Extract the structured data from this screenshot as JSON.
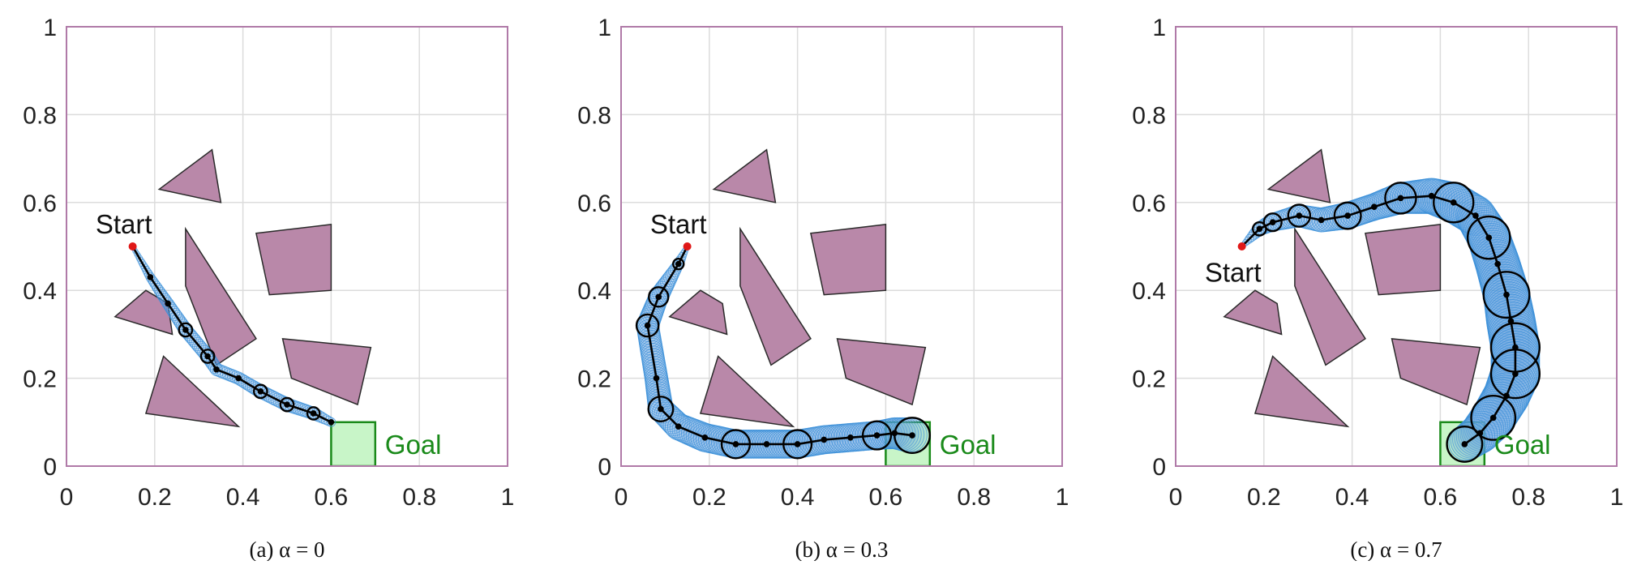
{
  "chart_data": [
    {
      "type": "line",
      "caption": "(a)  α = 0",
      "xlim": [
        0,
        1
      ],
      "ylim": [
        0,
        1
      ],
      "xticks": [
        "0",
        "0.2",
        "0.4",
        "0.6",
        "0.8",
        "1"
      ],
      "yticks": [
        "0",
        "0.2",
        "0.4",
        "0.6",
        "0.8",
        "1"
      ],
      "grid": true,
      "start_label": "Start",
      "goal_label": "Goal",
      "start": [
        0.15,
        0.5
      ],
      "start_label_pos": [
        0.13,
        0.55
      ],
      "goal_region": [
        [
          0.6,
          0
        ],
        [
          0.7,
          0.1
        ]
      ],
      "obstacles": [
        [
          [
            0.21,
            0.63
          ],
          [
            0.33,
            0.72
          ],
          [
            0.35,
            0.6
          ]
        ],
        [
          [
            0.27,
            0.54
          ],
          [
            0.43,
            0.29
          ],
          [
            0.34,
            0.23
          ],
          [
            0.27,
            0.41
          ]
        ],
        [
          [
            0.43,
            0.53
          ],
          [
            0.6,
            0.55
          ],
          [
            0.6,
            0.4
          ],
          [
            0.46,
            0.39
          ]
        ],
        [
          [
            0.18,
            0.4
          ],
          [
            0.23,
            0.37
          ],
          [
            0.24,
            0.3
          ],
          [
            0.11,
            0.34
          ]
        ],
        [
          [
            0.22,
            0.25
          ],
          [
            0.39,
            0.09
          ],
          [
            0.18,
            0.12
          ]
        ],
        [
          [
            0.49,
            0.29
          ],
          [
            0.69,
            0.27
          ],
          [
            0.66,
            0.14
          ],
          [
            0.51,
            0.2
          ]
        ]
      ],
      "path": [
        [
          0.15,
          0.5
        ],
        [
          0.19,
          0.43
        ],
        [
          0.23,
          0.37
        ],
        [
          0.27,
          0.31
        ],
        [
          0.32,
          0.25
        ],
        [
          0.34,
          0.22
        ],
        [
          0.39,
          0.2
        ],
        [
          0.44,
          0.17
        ],
        [
          0.5,
          0.14
        ],
        [
          0.56,
          0.12
        ],
        [
          0.6,
          0.1
        ]
      ],
      "tube_radius": [
        0.005,
        0.01,
        0.013,
        0.015,
        0.015,
        0.014,
        0.014,
        0.015,
        0.015,
        0.014,
        0.01
      ],
      "circle_indices": [
        3,
        4,
        7,
        8,
        9
      ]
    },
    {
      "type": "line",
      "caption": "(b)  α = 0.3",
      "xlim": [
        0,
        1
      ],
      "ylim": [
        0,
        1
      ],
      "xticks": [
        "0",
        "0.2",
        "0.4",
        "0.6",
        "0.8",
        "1"
      ],
      "yticks": [
        "0",
        "0.2",
        "0.4",
        "0.6",
        "0.8",
        "1"
      ],
      "grid": true,
      "start_label": "Start",
      "goal_label": "Goal",
      "start": [
        0.15,
        0.5
      ],
      "start_label_pos": [
        0.13,
        0.55
      ],
      "goal_region": [
        [
          0.6,
          0
        ],
        [
          0.7,
          0.1
        ]
      ],
      "obstacles": [
        [
          [
            0.21,
            0.63
          ],
          [
            0.33,
            0.72
          ],
          [
            0.35,
            0.6
          ]
        ],
        [
          [
            0.27,
            0.54
          ],
          [
            0.43,
            0.29
          ],
          [
            0.34,
            0.23
          ],
          [
            0.27,
            0.41
          ]
        ],
        [
          [
            0.43,
            0.53
          ],
          [
            0.6,
            0.55
          ],
          [
            0.6,
            0.4
          ],
          [
            0.46,
            0.39
          ]
        ],
        [
          [
            0.18,
            0.4
          ],
          [
            0.23,
            0.37
          ],
          [
            0.24,
            0.3
          ],
          [
            0.11,
            0.34
          ]
        ],
        [
          [
            0.22,
            0.25
          ],
          [
            0.39,
            0.09
          ],
          [
            0.18,
            0.12
          ]
        ],
        [
          [
            0.49,
            0.29
          ],
          [
            0.69,
            0.27
          ],
          [
            0.66,
            0.14
          ],
          [
            0.51,
            0.2
          ]
        ]
      ],
      "path": [
        [
          0.15,
          0.5
        ],
        [
          0.13,
          0.46
        ],
        [
          0.085,
          0.385
        ],
        [
          0.06,
          0.32
        ],
        [
          0.08,
          0.2
        ],
        [
          0.09,
          0.13
        ],
        [
          0.13,
          0.09
        ],
        [
          0.19,
          0.065
        ],
        [
          0.26,
          0.05
        ],
        [
          0.33,
          0.05
        ],
        [
          0.4,
          0.05
        ],
        [
          0.46,
          0.06
        ],
        [
          0.52,
          0.065
        ],
        [
          0.58,
          0.07
        ],
        [
          0.62,
          0.075
        ],
        [
          0.66,
          0.07
        ]
      ],
      "tube_radius": [
        0.005,
        0.012,
        0.022,
        0.025,
        0.026,
        0.028,
        0.03,
        0.032,
        0.032,
        0.032,
        0.032,
        0.032,
        0.032,
        0.032,
        0.035,
        0.04
      ],
      "circle_indices": [
        1,
        2,
        3,
        5,
        8,
        10,
        13,
        15
      ]
    },
    {
      "type": "line",
      "caption": "(c)  α = 0.7",
      "xlim": [
        0,
        1
      ],
      "ylim": [
        0,
        1
      ],
      "xticks": [
        "0",
        "0.2",
        "0.4",
        "0.6",
        "0.8",
        "1"
      ],
      "yticks": [
        "0",
        "0.2",
        "0.4",
        "0.6",
        "0.8",
        "1"
      ],
      "grid": true,
      "start_label": "Start",
      "goal_label": "Goal",
      "start": [
        0.15,
        0.5
      ],
      "start_label_pos": [
        0.13,
        0.44
      ],
      "goal_region": [
        [
          0.6,
          0
        ],
        [
          0.7,
          0.1
        ]
      ],
      "obstacles": [
        [
          [
            0.21,
            0.63
          ],
          [
            0.33,
            0.72
          ],
          [
            0.35,
            0.6
          ]
        ],
        [
          [
            0.27,
            0.54
          ],
          [
            0.43,
            0.29
          ],
          [
            0.34,
            0.23
          ],
          [
            0.27,
            0.41
          ]
        ],
        [
          [
            0.43,
            0.53
          ],
          [
            0.6,
            0.55
          ],
          [
            0.6,
            0.4
          ],
          [
            0.46,
            0.39
          ]
        ],
        [
          [
            0.18,
            0.4
          ],
          [
            0.23,
            0.37
          ],
          [
            0.24,
            0.3
          ],
          [
            0.11,
            0.34
          ]
        ],
        [
          [
            0.22,
            0.25
          ],
          [
            0.39,
            0.09
          ],
          [
            0.18,
            0.12
          ]
        ],
        [
          [
            0.49,
            0.29
          ],
          [
            0.69,
            0.27
          ],
          [
            0.66,
            0.14
          ],
          [
            0.51,
            0.2
          ]
        ]
      ],
      "path": [
        [
          0.15,
          0.5
        ],
        [
          0.19,
          0.54
        ],
        [
          0.22,
          0.555
        ],
        [
          0.28,
          0.57
        ],
        [
          0.33,
          0.56
        ],
        [
          0.39,
          0.57
        ],
        [
          0.45,
          0.59
        ],
        [
          0.51,
          0.61
        ],
        [
          0.58,
          0.615
        ],
        [
          0.63,
          0.6
        ],
        [
          0.68,
          0.57
        ],
        [
          0.71,
          0.52
        ],
        [
          0.73,
          0.46
        ],
        [
          0.75,
          0.39
        ],
        [
          0.76,
          0.33
        ],
        [
          0.77,
          0.27
        ],
        [
          0.77,
          0.21
        ],
        [
          0.75,
          0.16
        ],
        [
          0.72,
          0.11
        ],
        [
          0.69,
          0.075
        ],
        [
          0.655,
          0.05
        ]
      ],
      "tube_radius": [
        0.005,
        0.015,
        0.02,
        0.025,
        0.027,
        0.03,
        0.03,
        0.035,
        0.04,
        0.045,
        0.045,
        0.048,
        0.05,
        0.052,
        0.055,
        0.055,
        0.055,
        0.052,
        0.05,
        0.045,
        0.04
      ],
      "circle_indices": [
        1,
        2,
        3,
        5,
        7,
        9,
        11,
        13,
        15,
        16,
        18,
        20
      ]
    }
  ]
}
